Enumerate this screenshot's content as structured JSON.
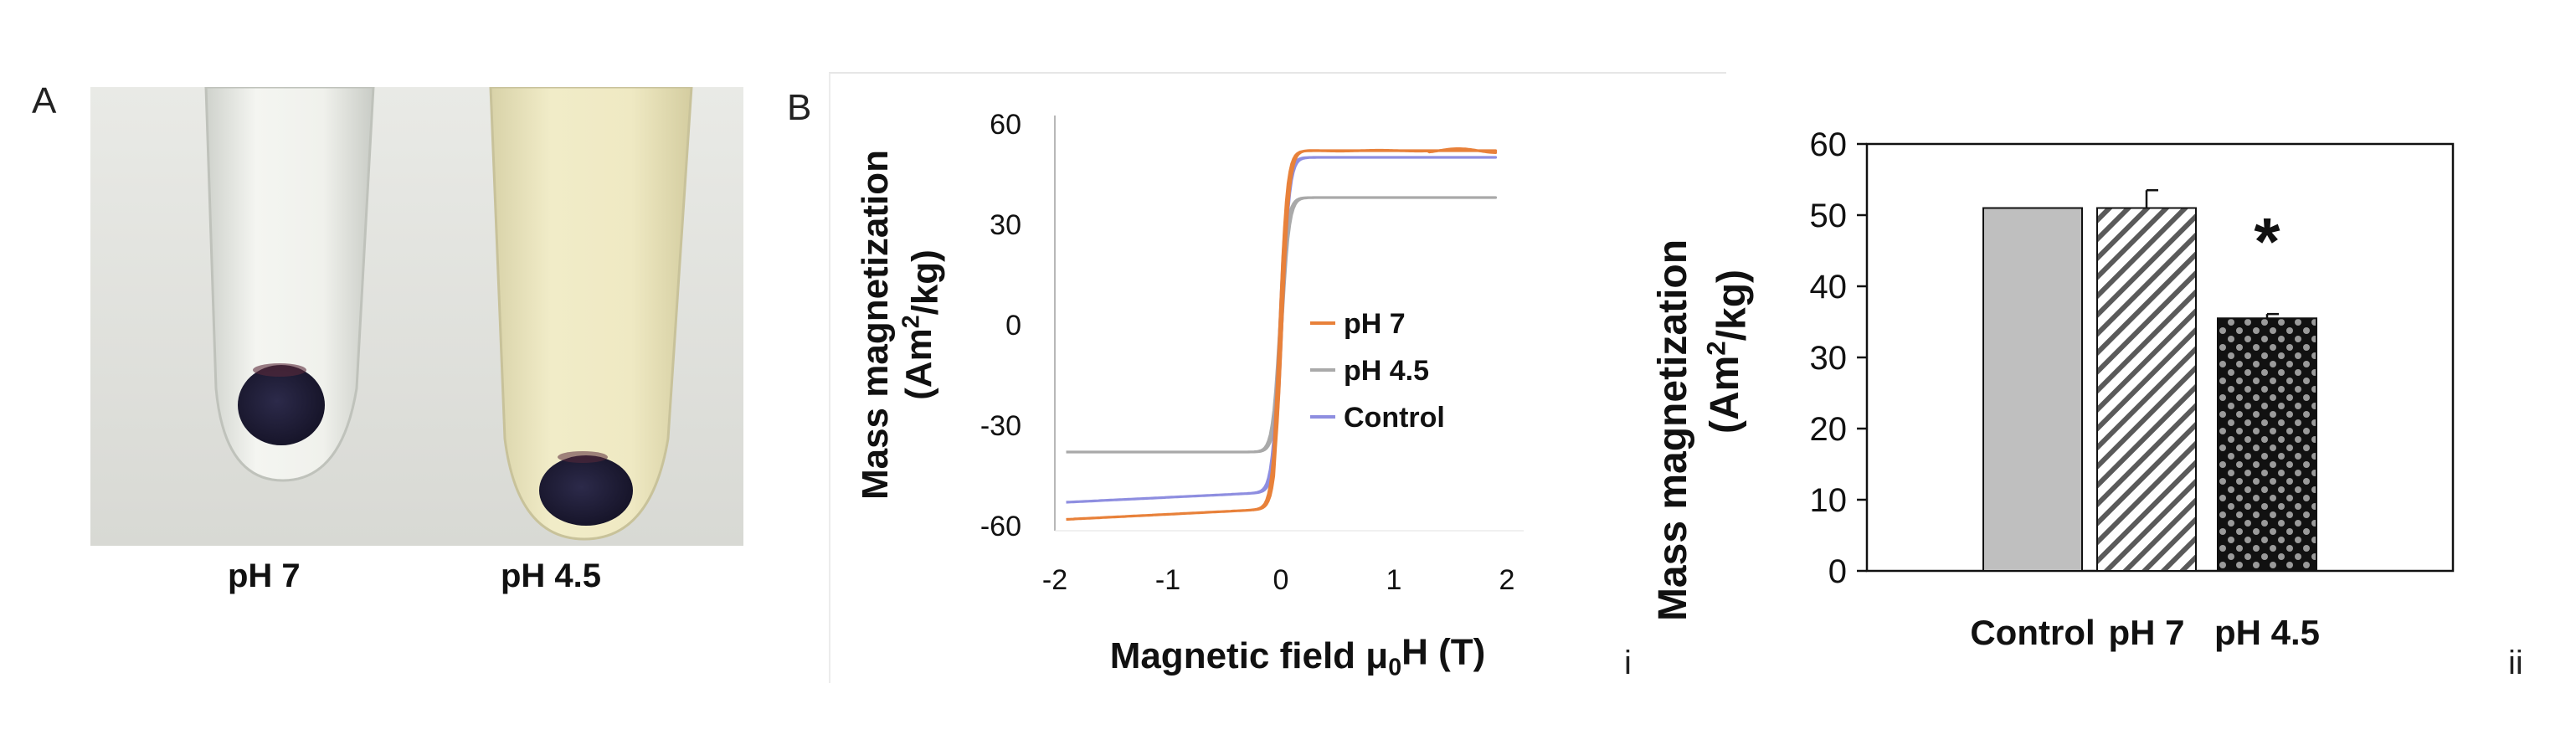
{
  "panel_a": {
    "letter": "A",
    "labels": [
      "pH 7",
      "pH 4.5"
    ],
    "colors": {
      "tube_left_liquid": "#eef0ea",
      "tube_right_liquid": "#ece7c2",
      "pellet": "#1f1d3a",
      "background": "#dfe0dc"
    }
  },
  "panel_b": {
    "letter": "B"
  },
  "chart_data": [
    {
      "type": "line",
      "sub_label": "i",
      "xlabel": "Magnetic field μ0H (T)",
      "ylabel": "Mass magnetization (Am2/kg)",
      "xlim": [
        -2,
        2
      ],
      "ylim": [
        -60,
        60
      ],
      "x_ticks": [
        "-2",
        "-1",
        "0",
        "1",
        "2"
      ],
      "y_ticks": [
        "60",
        "30",
        "0",
        "-30",
        "-60"
      ],
      "legend_position": "center-right",
      "series": [
        {
          "name": "pH 7",
          "color": "#e8813a",
          "saturation": 52,
          "x_min": -1.9,
          "x_max": 1.9
        },
        {
          "name": "pH 4.5",
          "color": "#a9a9a9",
          "saturation": 38,
          "x_min": -1.9,
          "x_max": 1.9
        },
        {
          "name": "Control",
          "color": "#8e8ee0",
          "saturation": 50,
          "x_min": -1.9,
          "x_max": 1.9
        }
      ]
    },
    {
      "type": "bar",
      "sub_label": "ii",
      "categories": [
        "Control",
        "pH 7",
        "pH 4.5"
      ],
      "values": [
        51,
        51,
        35.5
      ],
      "errors": [
        0,
        2.5,
        0.6
      ],
      "ylabel": "Mass magnetization (Am2/kg)",
      "ylim": [
        0,
        60
      ],
      "y_ticks": [
        "0",
        "10",
        "20",
        "30",
        "40",
        "50",
        "60"
      ],
      "annotation": "*",
      "fills": [
        "solid-gray",
        "diagonal-hatch",
        "dots"
      ],
      "colors": {
        "control": "#bfbfbf",
        "hatch": "#5a5a5a",
        "dots_bg": "#111111"
      }
    }
  ]
}
